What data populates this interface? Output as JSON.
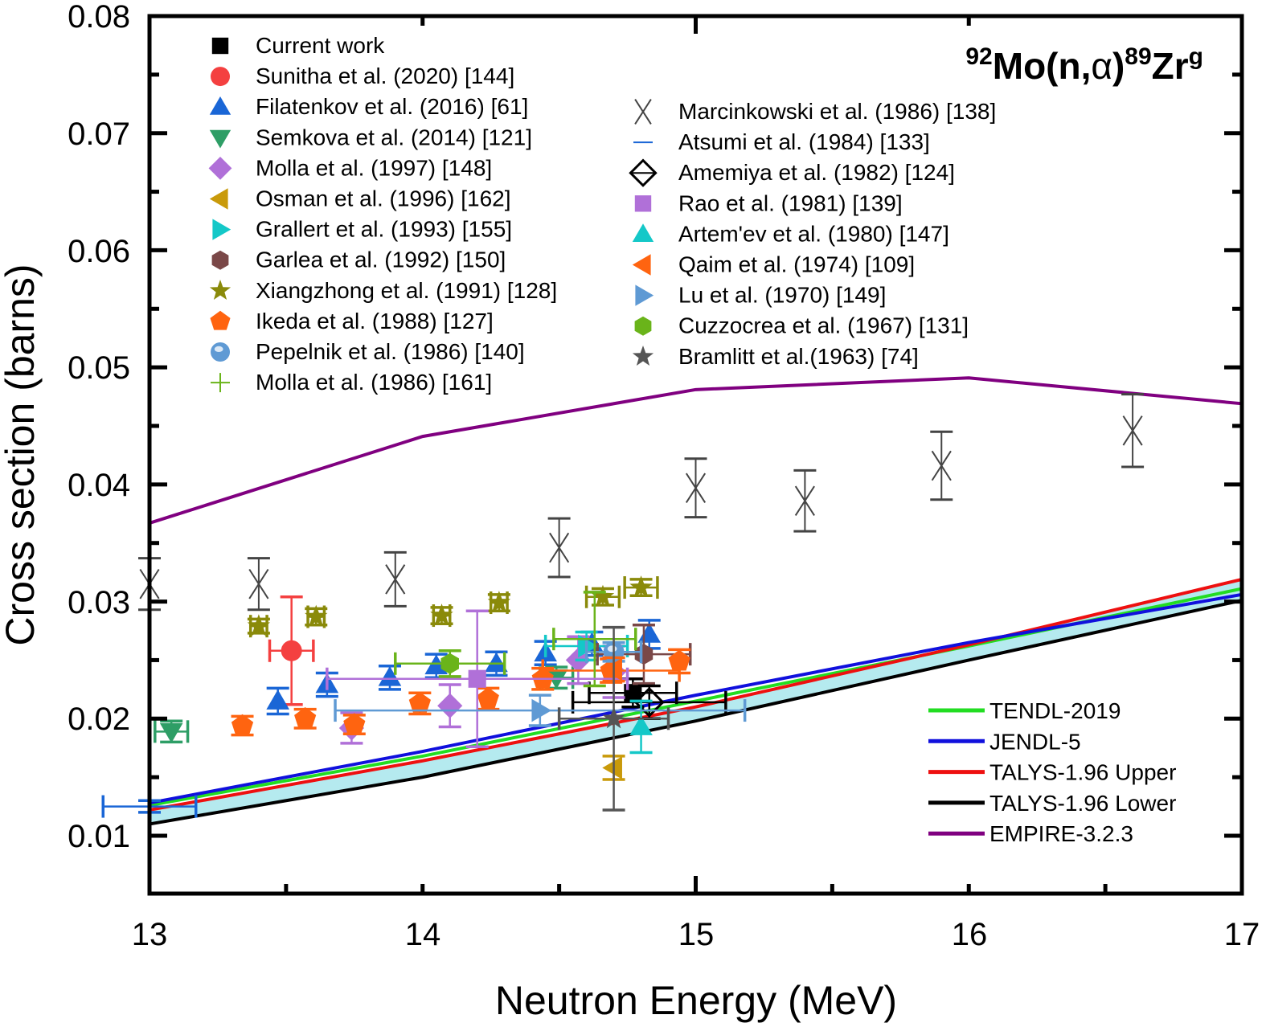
{
  "chart_data": {
    "type": "scatter",
    "title": "92Mo(n,α)89Zrg",
    "title_parts": {
      "mass_target": "92",
      "target": "Mo(n,",
      "alpha": "α",
      "close": ")",
      "mass_product": "89",
      "product": "Zr",
      "state": "g"
    },
    "xlabel": "Neutron Energy (MeV)",
    "ylabel": "Cross section (barns)",
    "xlim": [
      13,
      17
    ],
    "ylim": [
      0.0051,
      0.08
    ],
    "xticks": [
      13,
      14,
      15,
      16,
      17
    ],
    "xtick_labels": [
      "13",
      "14",
      "15",
      "16",
      "17"
    ],
    "yticks": [
      0.01,
      0.02,
      0.03,
      0.04,
      0.05,
      0.06,
      0.07,
      0.08
    ],
    "ytick_labels": [
      "0.01",
      "0.02",
      "0.03",
      "0.04",
      "0.05",
      "0.06",
      "0.07",
      "0.08"
    ],
    "grid": false,
    "legend_placement": "top-left (two columns) and bottom-right for curves",
    "scatter_series": [
      {
        "name": "Current work",
        "marker": "square",
        "color": "#000000",
        "points": [
          {
            "x": 14.77,
            "y": 0.0222,
            "xerr": 0.16,
            "yerr": 0.0012
          }
        ]
      },
      {
        "name": "Sunitha et al. (2020) [144]",
        "marker": "circle",
        "color": "#f44040",
        "points": [
          {
            "x": 13.52,
            "y": 0.0258,
            "xerr": 0.08,
            "yerr": 0.0046
          }
        ]
      },
      {
        "name": "Filatenkov et al. (2016) [61]",
        "marker": "triangle-up",
        "color": "#1a66d6",
        "points": [
          {
            "x": 13.47,
            "y": 0.0215,
            "xerr": 0,
            "yerr": 0.0011
          },
          {
            "x": 13.65,
            "y": 0.0229,
            "xerr": 0,
            "yerr": 0.001
          },
          {
            "x": 13.88,
            "y": 0.0235,
            "xerr": 0,
            "yerr": 0.001
          },
          {
            "x": 14.05,
            "y": 0.0245,
            "xerr": 0,
            "yerr": 0.001
          },
          {
            "x": 14.27,
            "y": 0.0247,
            "xerr": 0,
            "yerr": 0.001
          },
          {
            "x": 14.45,
            "y": 0.0256,
            "xerr": 0,
            "yerr": 0.001
          },
          {
            "x": 14.62,
            "y": 0.0264,
            "xerr": 0,
            "yerr": 0.001
          },
          {
            "x": 14.83,
            "y": 0.0272,
            "xerr": 0,
            "yerr": 0.0012
          }
        ]
      },
      {
        "name": "Semkova et al. (2014) [121]",
        "marker": "triangle-down",
        "color": "#2e9e66",
        "points": [
          {
            "x": 13.08,
            "y": 0.0189,
            "xerr": 0.06,
            "yerr": 0.0009
          },
          {
            "x": 14.49,
            "y": 0.0235,
            "xerr": 0.06,
            "yerr": 0.0009
          }
        ]
      },
      {
        "name": "Molla et al. (1997) [148]",
        "marker": "diamond",
        "color": "#b070d8",
        "points": [
          {
            "x": 13.74,
            "y": 0.0192,
            "xerr": 0,
            "yerr": 0.0013
          },
          {
            "x": 14.1,
            "y": 0.0211,
            "xerr": 0,
            "yerr": 0.0018
          },
          {
            "x": 14.57,
            "y": 0.025,
            "xerr": 0,
            "yerr": 0.002
          },
          {
            "x": 14.7,
            "y": 0.024,
            "xerr": 0,
            "yerr": 0.0022
          }
        ]
      },
      {
        "name": "Osman et al. (1996) [162]",
        "marker": "triangle-left",
        "color": "#c99a0a",
        "points": [
          {
            "x": 14.7,
            "y": 0.0158,
            "xerr": 0,
            "yerr": 0.001
          }
        ]
      },
      {
        "name": "Grallert et al. (1993) [155]",
        "marker": "triangle-right",
        "color": "#14c8c8",
        "points": [
          {
            "x": 14.6,
            "y": 0.0262,
            "xerr": 0.15,
            "yerr": 0.0012
          }
        ]
      },
      {
        "name": "Garlea et al. (1992) [150]",
        "marker": "hexagon",
        "color": "#7a4848",
        "points": [
          {
            "x": 14.81,
            "y": 0.0255,
            "xerr": 0.17,
            "yerr": 0.0025
          }
        ]
      },
      {
        "name": "Xiangzhong et al. (1991) [128]",
        "marker": "star",
        "color": "#8a8a0a",
        "points": [
          {
            "x": 13.4,
            "y": 0.0279,
            "xerr": 0.03,
            "yerr": 0.0006
          },
          {
            "x": 13.61,
            "y": 0.0287,
            "xerr": 0.03,
            "yerr": 0.0007
          },
          {
            "x": 14.07,
            "y": 0.0288,
            "xerr": 0.03,
            "yerr": 0.0007
          },
          {
            "x": 14.28,
            "y": 0.0299,
            "xerr": 0.03,
            "yerr": 0.0007
          },
          {
            "x": 14.66,
            "y": 0.0304,
            "xerr": 0.06,
            "yerr": 0.0007
          },
          {
            "x": 14.8,
            "y": 0.0312,
            "xerr": 0.06,
            "yerr": 0.0007
          }
        ]
      },
      {
        "name": "Ikeda et al. (1988) [127]",
        "marker": "pentagon",
        "color": "#ff6410",
        "points": [
          {
            "x": 13.34,
            "y": 0.0194,
            "xerr": 0,
            "yerr": 0.0008
          },
          {
            "x": 13.57,
            "y": 0.02,
            "xerr": 0,
            "yerr": 0.0008
          },
          {
            "x": 13.75,
            "y": 0.0195,
            "xerr": 0,
            "yerr": 0.0008
          },
          {
            "x": 13.99,
            "y": 0.0213,
            "xerr": 0,
            "yerr": 0.0009
          },
          {
            "x": 14.24,
            "y": 0.0217,
            "xerr": 0,
            "yerr": 0.0009
          },
          {
            "x": 14.44,
            "y": 0.0234,
            "xerr": 0,
            "yerr": 0.0009
          },
          {
            "x": 14.69,
            "y": 0.0241,
            "xerr": 0.25,
            "yerr": 0.001
          },
          {
            "x": 14.94,
            "y": 0.0249,
            "xerr": 0,
            "yerr": 0.001
          }
        ]
      },
      {
        "name": "Pepelnik et al. (1986) [140]",
        "marker": "sphere",
        "color": "#5f9ad4",
        "points": [
          {
            "x": 14.7,
            "y": 0.0257,
            "xerr": 0.1,
            "yerr": 0.0008
          }
        ]
      },
      {
        "name": "Molla et al. (1986) [161]",
        "marker": "plus",
        "color": "#6ab41a",
        "points": [
          {
            "x": 14.63,
            "y": 0.0268,
            "xerr": 0.15,
            "yerr": 0.004
          }
        ]
      },
      {
        "name": "Marcinkowski et al. (1986) [138]",
        "marker": "x",
        "color": "#444444",
        "points": [
          {
            "x": 13.0,
            "y": 0.0315,
            "xerr": 0,
            "yerr": 0.0022
          },
          {
            "x": 13.4,
            "y": 0.0315,
            "xerr": 0,
            "yerr": 0.0022
          },
          {
            "x": 13.9,
            "y": 0.0319,
            "xerr": 0,
            "yerr": 0.0023
          },
          {
            "x": 14.5,
            "y": 0.0346,
            "xerr": 0,
            "yerr": 0.0025
          },
          {
            "x": 15.0,
            "y": 0.0397,
            "xerr": 0,
            "yerr": 0.0025
          },
          {
            "x": 15.4,
            "y": 0.0386,
            "xerr": 0,
            "yerr": 0.0026
          },
          {
            "x": 15.9,
            "y": 0.0416,
            "xerr": 0,
            "yerr": 0.0029
          },
          {
            "x": 16.6,
            "y": 0.0446,
            "xerr": 0,
            "yerr": 0.0031
          }
        ]
      },
      {
        "name": "Atsumi et al. (1984) [133]",
        "marker": "dash",
        "color": "#1a66d6",
        "points": [
          {
            "x": 13.0,
            "y": 0.0125,
            "xerr": 0.17,
            "yerr": 0.0005
          }
        ]
      },
      {
        "name": "Amemiya et al. (1982) [124]",
        "marker": "open-diamond",
        "color": "#000000",
        "points": [
          {
            "x": 14.83,
            "y": 0.0214,
            "xerr": 0.28,
            "yerr": 0.0014
          }
        ]
      },
      {
        "name": "Rao et al. (1981) [139]",
        "marker": "square",
        "color": "#b070d8",
        "points": [
          {
            "x": 14.2,
            "y": 0.0234,
            "xerr": 0.55,
            "yerr": 0.0058
          }
        ]
      },
      {
        "name": "Artem'ev et al. (1980) [147]",
        "marker": "triangle-up",
        "color": "#14c8c8",
        "points": [
          {
            "x": 14.8,
            "y": 0.0193,
            "xerr": 0,
            "yerr": 0.0022
          }
        ]
      },
      {
        "name": "Qaim et al. (1974) [109]",
        "marker": "triangle-left",
        "color": "#ff6410",
        "points": [
          {
            "x": 14.7,
            "y": 0.0242,
            "xerr": 0,
            "yerr": 0.001
          }
        ]
      },
      {
        "name": "Lu et al. (1970) [149]",
        "marker": "triangle-right",
        "color": "#5f9ad4",
        "points": [
          {
            "x": 14.43,
            "y": 0.0207,
            "xerr": 0.75,
            "yerr": 0.0013
          }
        ]
      },
      {
        "name": "Cuzzocrea et al. (1967) [131]",
        "marker": "hexagon",
        "color": "#6ab41a",
        "points": [
          {
            "x": 14.1,
            "y": 0.0247,
            "xerr": 0.2,
            "yerr": 0.0011
          }
        ]
      },
      {
        "name": "Bramlitt et al.(1963) [74]",
        "marker": "star",
        "color": "#555555",
        "points": [
          {
            "x": 14.7,
            "y": 0.02,
            "xerr": 0.2,
            "yerr": 0.0078
          }
        ]
      }
    ],
    "line_series": [
      {
        "name": "TENDL-2019",
        "color": "#22dd22",
        "x": [
          13,
          14,
          15,
          16,
          17
        ],
        "y": [
          0.0126,
          0.0168,
          0.0215,
          0.0262,
          0.0311
        ]
      },
      {
        "name": "JENDL-5",
        "color": "#1010dd",
        "x": [
          13,
          14,
          15,
          16,
          17
        ],
        "y": [
          0.0128,
          0.0172,
          0.022,
          0.0265,
          0.0306
        ]
      },
      {
        "name": "TALYS-1.96 Upper",
        "color": "#ee1010",
        "x": [
          13,
          14,
          15,
          16,
          17
        ],
        "y": [
          0.0122,
          0.0164,
          0.021,
          0.0263,
          0.0319
        ]
      },
      {
        "name": "TALYS-1.96 Lower",
        "color": "#000000",
        "x": [
          13,
          14,
          15,
          16,
          17
        ],
        "y": [
          0.011,
          0.015,
          0.0198,
          0.025,
          0.0301
        ]
      },
      {
        "name": "EMPIRE-3.2.3",
        "color": "#800080",
        "x": [
          13,
          14,
          15,
          16,
          17
        ],
        "y": [
          0.0367,
          0.0441,
          0.0481,
          0.0491,
          0.0469
        ]
      }
    ],
    "band": {
      "between": [
        "TALYS-1.96 Upper",
        "TALYS-1.96 Lower"
      ],
      "color": "#a8e6ec"
    }
  }
}
